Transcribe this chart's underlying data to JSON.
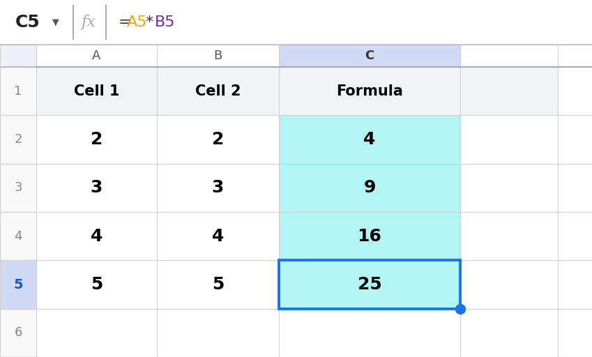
{
  "formula_bar_cell": "C5",
  "formula_bar_A5_color": "#E8A317",
  "formula_bar_B5_color": "#7030A0",
  "formula_bar_text_color": "#333333",
  "formula_bar_bg": "#ffffff",
  "row1_data": [
    "Cell 1",
    "Cell 2",
    "Formula"
  ],
  "rows_data": [
    [
      "2",
      "2",
      "4"
    ],
    [
      "3",
      "3",
      "9"
    ],
    [
      "4",
      "4",
      "16"
    ],
    [
      "5",
      "5",
      "25"
    ]
  ],
  "bg_white": "#ffffff",
  "col_header_selected_bg": "#d0daf5",
  "col_header_bg": "#ffffff",
  "row_header_bg": "#f8f8f8",
  "row_header_corner_bg": "#eef0f7",
  "row_header_selected_bg": "#d0daf5",
  "row_header_selected_text": "#1a56cc",
  "row_header_text_color": "#888888",
  "col_header_text_color": "#555555",
  "col_header_selected_text": "#333333",
  "cell_cyan_bg": "#b2f5f5",
  "cell_selected_border": "#1a73e8",
  "grid_line_color": "#d0d0d0",
  "header_row_bg": "#f1f3f4",
  "normal_text_color": "#000000",
  "formula_bar_border": "#cccccc",
  "formula_bar_separator": "#aaaaaa",
  "fig_width": 8.49,
  "fig_height": 5.12,
  "dpi": 100
}
